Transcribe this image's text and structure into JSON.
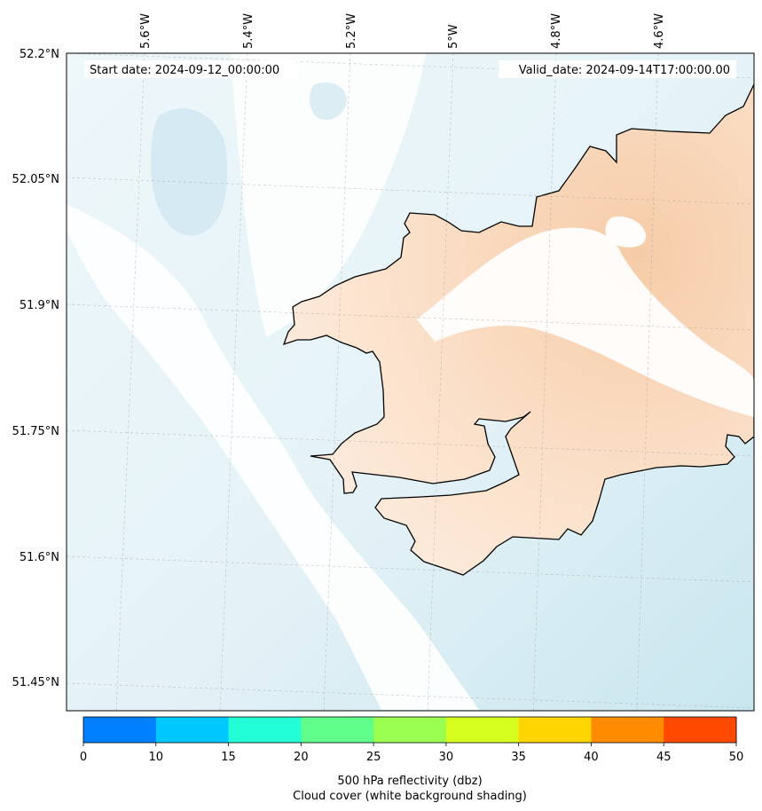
{
  "map": {
    "start_date": "Start date: 2024-09-12_00:00:00",
    "valid_date": "Valid_date: 2024-09-14T17:00:00.00",
    "longitude_labels": [
      "5.6°W",
      "5.4°W",
      "5.2°W",
      "5°W",
      "4.8°W",
      "4.6°W"
    ],
    "latitude_labels": [
      "52.2°N",
      "52.05°N",
      "51.9°N",
      "51.75°N",
      "51.6°N",
      "51.45°N"
    ]
  },
  "colorbar": {
    "ticks": [
      "0",
      "10",
      "15",
      "20",
      "25",
      "30",
      "35",
      "40",
      "45",
      "50"
    ],
    "colors": [
      "#0080ff",
      "#00c8ff",
      "#22ffd6",
      "#60ff8c",
      "#9aff50",
      "#d6ff20",
      "#ffd500",
      "#ff8c00",
      "#ff4800"
    ],
    "label_line1": "500 hPa reflectivity (dbz)",
    "label_line2": "Cloud cover (white background shading)"
  },
  "colors": {
    "land_shade": "#fbe2cc",
    "cloud_shade": "#d6ebf2",
    "coastline": "#000000"
  }
}
